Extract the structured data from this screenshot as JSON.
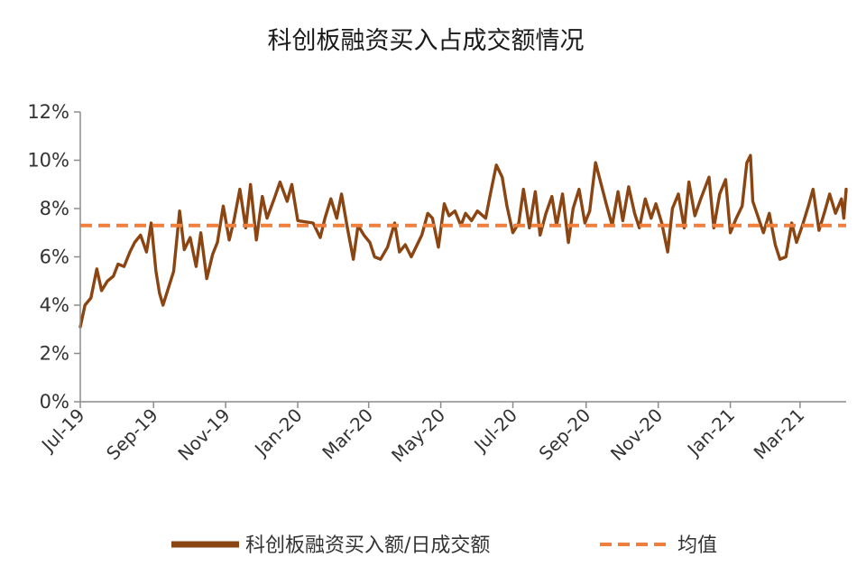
{
  "chart_data": {
    "type": "line",
    "title": "科创板融资买入占成交额情况",
    "xlabel": "",
    "ylabel": "",
    "x_range": [
      "2019-07-22",
      "2021-04-30"
    ],
    "ylim": [
      0,
      12
    ],
    "y_ticks": [
      0,
      2,
      4,
      6,
      8,
      10,
      12
    ],
    "y_tick_labels": [
      "0%",
      "2%",
      "4%",
      "6%",
      "8%",
      "10%",
      "12%"
    ],
    "x_ticks": [
      "2019-07-22",
      "2019-09-22",
      "2019-11-22",
      "2020-01-22",
      "2020-03-22",
      "2020-05-22",
      "2020-07-22",
      "2020-09-22",
      "2020-11-22",
      "2021-01-22",
      "2021-03-22"
    ],
    "x_tick_labels": [
      "Jul-19",
      "Sep-19",
      "Nov-19",
      "Jan-20",
      "Mar-20",
      "May-20",
      "Jul-20",
      "Sep-20",
      "Nov-20",
      "Jan-21",
      "Mar-21"
    ],
    "grid": false,
    "legend_position": "bottom",
    "series": [
      {
        "name": "科创板融资买入额/日成交额",
        "color": "#8B4513",
        "style": "solid",
        "points": [
          [
            "2019-07-22",
            3.1
          ],
          [
            "2019-07-26",
            4.0
          ],
          [
            "2019-07-31",
            4.3
          ],
          [
            "2019-08-05",
            5.5
          ],
          [
            "2019-08-09",
            4.6
          ],
          [
            "2019-08-14",
            5.0
          ],
          [
            "2019-08-19",
            5.2
          ],
          [
            "2019-08-23",
            5.7
          ],
          [
            "2019-08-28",
            5.6
          ],
          [
            "2019-09-02",
            6.2
          ],
          [
            "2019-09-06",
            6.6
          ],
          [
            "2019-09-11",
            6.9
          ],
          [
            "2019-09-16",
            6.2
          ],
          [
            "2019-09-20",
            7.4
          ],
          [
            "2019-09-24",
            5.4
          ],
          [
            "2019-09-27",
            4.5
          ],
          [
            "2019-09-30",
            4.0
          ],
          [
            "2019-10-09",
            5.4
          ],
          [
            "2019-10-14",
            7.9
          ],
          [
            "2019-10-18",
            6.3
          ],
          [
            "2019-10-23",
            6.8
          ],
          [
            "2019-10-28",
            5.6
          ],
          [
            "2019-11-01",
            7.0
          ],
          [
            "2019-11-06",
            5.1
          ],
          [
            "2019-11-11",
            6.1
          ],
          [
            "2019-11-15",
            6.6
          ],
          [
            "2019-11-20",
            8.1
          ],
          [
            "2019-11-25",
            6.7
          ],
          [
            "2019-11-29",
            7.5
          ],
          [
            "2019-12-04",
            8.8
          ],
          [
            "2019-12-09",
            7.2
          ],
          [
            "2019-12-13",
            9.0
          ],
          [
            "2019-12-18",
            6.7
          ],
          [
            "2019-12-23",
            8.5
          ],
          [
            "2019-12-27",
            7.6
          ],
          [
            "2020-01-02",
            8.4
          ],
          [
            "2020-01-07",
            9.1
          ],
          [
            "2020-01-13",
            8.3
          ],
          [
            "2020-01-17",
            9.0
          ],
          [
            "2020-01-22",
            7.5
          ],
          [
            "2020-02-04",
            7.4
          ],
          [
            "2020-02-10",
            6.8
          ],
          [
            "2020-02-14",
            7.6
          ],
          [
            "2020-02-19",
            8.4
          ],
          [
            "2020-02-24",
            7.6
          ],
          [
            "2020-02-28",
            8.6
          ],
          [
            "2020-03-04",
            7.2
          ],
          [
            "2020-03-09",
            5.9
          ],
          [
            "2020-03-13",
            7.3
          ],
          [
            "2020-03-18",
            6.9
          ],
          [
            "2020-03-23",
            6.6
          ],
          [
            "2020-03-27",
            6.0
          ],
          [
            "2020-04-01",
            5.9
          ],
          [
            "2020-04-07",
            6.4
          ],
          [
            "2020-04-13",
            7.4
          ],
          [
            "2020-04-17",
            6.2
          ],
          [
            "2020-04-22",
            6.5
          ],
          [
            "2020-04-27",
            6.0
          ],
          [
            "2020-05-06",
            6.9
          ],
          [
            "2020-05-11",
            7.8
          ],
          [
            "2020-05-15",
            7.6
          ],
          [
            "2020-05-20",
            6.4
          ],
          [
            "2020-05-25",
            8.2
          ],
          [
            "2020-05-29",
            7.7
          ],
          [
            "2020-06-03",
            7.9
          ],
          [
            "2020-06-08",
            7.3
          ],
          [
            "2020-06-12",
            7.8
          ],
          [
            "2020-06-17",
            7.5
          ],
          [
            "2020-06-22",
            7.9
          ],
          [
            "2020-06-29",
            7.6
          ],
          [
            "2020-07-03",
            8.6
          ],
          [
            "2020-07-08",
            9.8
          ],
          [
            "2020-07-13",
            9.3
          ],
          [
            "2020-07-17",
            8.1
          ],
          [
            "2020-07-22",
            7.0
          ],
          [
            "2020-07-27",
            7.4
          ],
          [
            "2020-07-31",
            8.8
          ],
          [
            "2020-08-05",
            7.2
          ],
          [
            "2020-08-10",
            8.7
          ],
          [
            "2020-08-14",
            6.9
          ],
          [
            "2020-08-19",
            7.8
          ],
          [
            "2020-08-24",
            8.5
          ],
          [
            "2020-08-28",
            7.3
          ],
          [
            "2020-09-02",
            8.6
          ],
          [
            "2020-09-07",
            6.6
          ],
          [
            "2020-09-11",
            8.0
          ],
          [
            "2020-09-16",
            8.8
          ],
          [
            "2020-09-21",
            7.4
          ],
          [
            "2020-09-25",
            7.9
          ],
          [
            "2020-09-30",
            9.9
          ],
          [
            "2020-10-09",
            8.2
          ],
          [
            "2020-10-14",
            7.3
          ],
          [
            "2020-10-19",
            8.7
          ],
          [
            "2020-10-23",
            7.5
          ],
          [
            "2020-10-28",
            8.9
          ],
          [
            "2020-11-02",
            7.8
          ],
          [
            "2020-11-06",
            7.2
          ],
          [
            "2020-11-11",
            8.4
          ],
          [
            "2020-11-16",
            7.6
          ],
          [
            "2020-11-20",
            8.2
          ],
          [
            "2020-11-25",
            7.4
          ],
          [
            "2020-11-30",
            6.2
          ],
          [
            "2020-12-04",
            8.0
          ],
          [
            "2020-12-09",
            8.6
          ],
          [
            "2020-12-14",
            7.2
          ],
          [
            "2020-12-18",
            9.1
          ],
          [
            "2020-12-23",
            7.7
          ],
          [
            "2020-12-28",
            8.4
          ],
          [
            "2021-01-04",
            9.3
          ],
          [
            "2021-01-08",
            7.2
          ],
          [
            "2021-01-13",
            8.6
          ],
          [
            "2021-01-18",
            9.2
          ],
          [
            "2021-01-22",
            7.0
          ],
          [
            "2021-01-27",
            7.6
          ],
          [
            "2021-02-01",
            8.1
          ],
          [
            "2021-02-05",
            9.9
          ],
          [
            "2021-02-08",
            10.2
          ],
          [
            "2021-02-10",
            8.3
          ],
          [
            "2021-02-19",
            7.0
          ],
          [
            "2021-02-24",
            7.8
          ],
          [
            "2021-03-01",
            6.5
          ],
          [
            "2021-03-05",
            5.9
          ],
          [
            "2021-03-10",
            6.0
          ],
          [
            "2021-03-15",
            7.4
          ],
          [
            "2021-03-19",
            6.6
          ],
          [
            "2021-03-24",
            7.3
          ],
          [
            "2021-03-29",
            8.1
          ],
          [
            "2021-04-02",
            8.8
          ],
          [
            "2021-04-07",
            7.1
          ],
          [
            "2021-04-12",
            7.9
          ],
          [
            "2021-04-16",
            8.6
          ],
          [
            "2021-04-21",
            7.8
          ],
          [
            "2021-04-26",
            8.4
          ],
          [
            "2021-04-28",
            7.6
          ],
          [
            "2021-04-30",
            8.8
          ]
        ]
      },
      {
        "name": "均值",
        "color": "#F07F3C",
        "style": "dashed",
        "points": [
          [
            "2019-07-22",
            7.3
          ],
          [
            "2021-04-30",
            7.3
          ]
        ]
      }
    ]
  }
}
